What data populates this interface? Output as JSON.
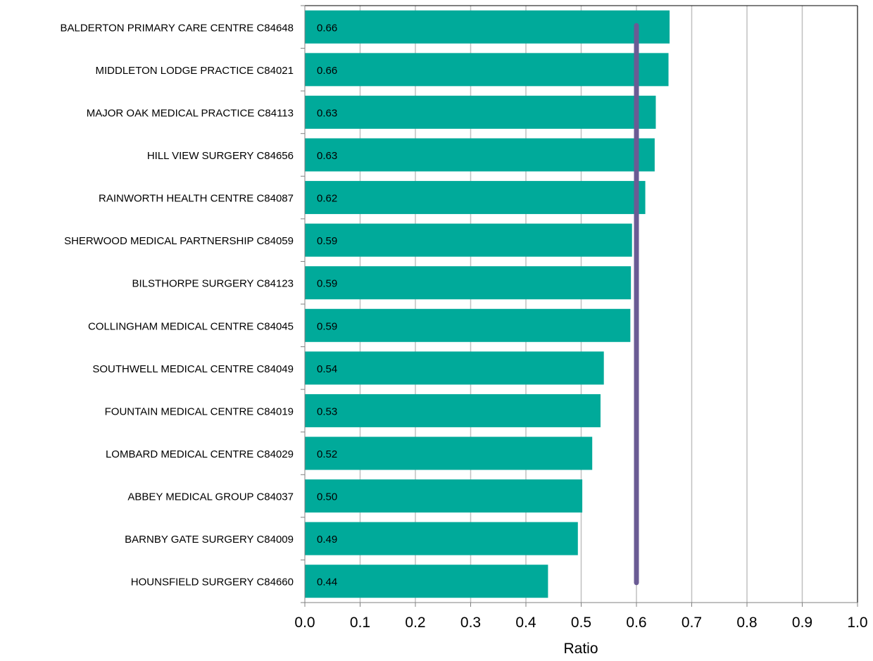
{
  "chart_data": {
    "type": "bar",
    "orientation": "horizontal",
    "categories": [
      "BALDERTON PRIMARY CARE CENTRE C84648",
      "MIDDLETON LODGE PRACTICE C84021",
      "MAJOR OAK MEDICAL PRACTICE C84113",
      "HILL VIEW SURGERY C84656",
      "RAINWORTH HEALTH CENTRE C84087",
      "SHERWOOD MEDICAL PARTNERSHIP C84059",
      "BILSTHORPE SURGERY C84123",
      "COLLINGHAM MEDICAL CENTRE C84045",
      "SOUTHWELL MEDICAL CENTRE C84049",
      "FOUNTAIN MEDICAL CENTRE C84019",
      "LOMBARD MEDICAL CENTRE C84029",
      "ABBEY MEDICAL GROUP C84037",
      "BARNBY GATE SURGERY C84009",
      "HOUNSFIELD SURGERY C84660"
    ],
    "values": [
      0.66,
      0.658,
      0.635,
      0.633,
      0.616,
      0.592,
      0.59,
      0.589,
      0.541,
      0.535,
      0.52,
      0.502,
      0.494,
      0.44
    ],
    "value_labels": [
      "0.66",
      "0.66",
      "0.63",
      "0.63",
      "0.62",
      "0.59",
      "0.59",
      "0.59",
      "0.54",
      "0.53",
      "0.52",
      "0.50",
      "0.49",
      "0.44"
    ],
    "reference_line": {
      "value": 0.6,
      "color": "#6a5b94"
    },
    "xlabel": "Ratio",
    "xlim": [
      0.0,
      1.0
    ],
    "xticks": [
      "0.0",
      "0.1",
      "0.2",
      "0.3",
      "0.4",
      "0.5",
      "0.6",
      "0.7",
      "0.8",
      "0.9",
      "1.0"
    ],
    "grid": "vertical",
    "bar_color": "#00aa9a"
  }
}
